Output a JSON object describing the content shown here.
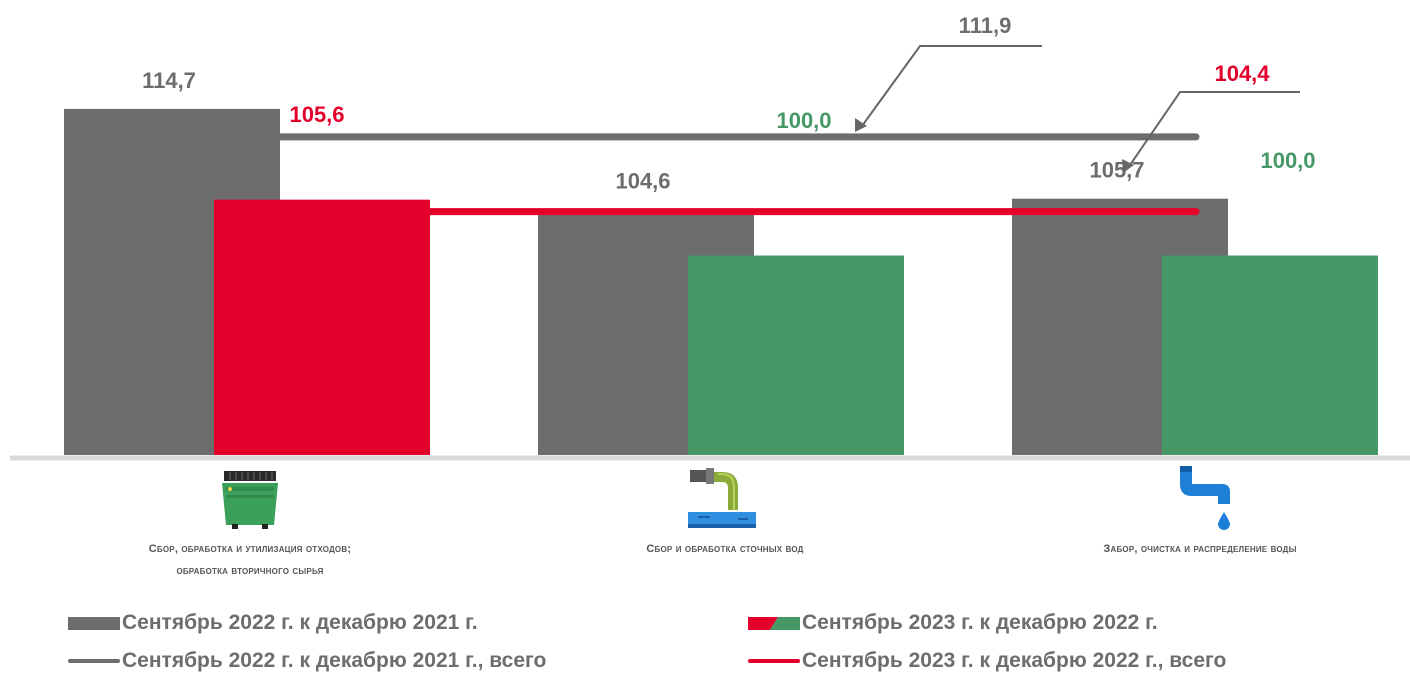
{
  "chart_data": {
    "type": "bar",
    "categories": [
      "Сбор, обработка и утилизация отходов; обработка вторичного сырья",
      "Сбор и обработка сточных вод",
      "Забор, очистка и распределение воды"
    ],
    "series": [
      {
        "name": "Сентябрь 2022 г. к декабрю 2021 г.",
        "values": [
          114.7,
          104.6,
          105.7
        ],
        "labels": [
          "114,7",
          "104,6",
          "105,7"
        ]
      },
      {
        "name": "Сентябрь 2023 г. к декабрю 2022 г.",
        "values": [
          105.6,
          100.0,
          100.0
        ],
        "labels": [
          "105,6",
          "100,0",
          "100,0"
        ]
      }
    ],
    "totals": [
      {
        "name": "Сентябрь 2022 г. к декабрю 2021 г., всего",
        "value": 111.9,
        "label": "111,9"
      },
      {
        "name": "Сентябрь 2023 г. к декабрю 2022 г., всего",
        "value": 104.4,
        "label": "104,4"
      }
    ],
    "ylim": [
      80,
      118
    ],
    "grid": false,
    "legend_position": "bottom",
    "colors": {
      "series1": "#6d6d6d",
      "series2_by_category": [
        "#e3002b",
        "#469966",
        "#469966"
      ],
      "total1_line": "#6d6d6d",
      "total2_line": "#e3002b",
      "axis": "#d9d9d9"
    }
  },
  "category_labels": [
    [
      "Сбор, обработка и утилизация отходов;",
      "обработка вторичного сырья"
    ],
    [
      "Сбор и обработка сточных вод"
    ],
    [
      "Забор, очистка и распределение воды"
    ]
  ],
  "icons": [
    "dumpster-icon",
    "sewage-pipe-icon",
    "water-tap-icon"
  ],
  "legend": {
    "bar1": "Сентябрь 2022 г. к декабрю 2021 г.",
    "bar2": "Сентябрь 2023 г. к декабрю 2022 г.",
    "line1": "Сентябрь 2022 г. к декабрю 2021 г., всего",
    "line2": "Сентябрь 2023 г. к декабрю 2022 г., всего"
  }
}
